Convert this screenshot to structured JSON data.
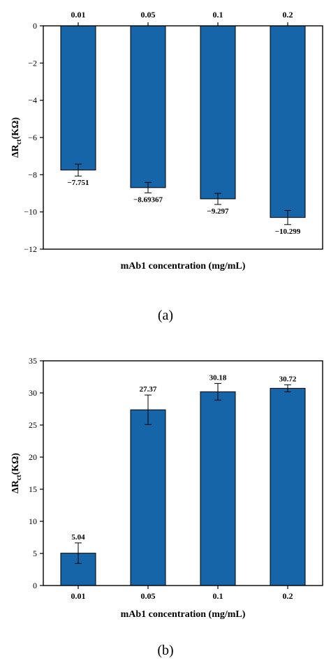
{
  "chart_data": [
    {
      "panel": "(a)",
      "type": "bar",
      "categories": [
        "0.01",
        "0.05",
        "0.1",
        "0.2"
      ],
      "values": [
        -7.751,
        -8.69367,
        -9.297,
        -10.299
      ],
      "value_labels": [
        "−7.751",
        "−8.69367",
        "−9.297",
        "−10.299"
      ],
      "errors": [
        0.32,
        0.28,
        0.3,
        0.38
      ],
      "xlabel": "mAb1 concentration (mg/mL)",
      "ylabel_main": "ΔR",
      "ylabel_sub": "ct",
      "ylabel_unit": "(KΩ)",
      "ylim": [
        -12,
        0
      ],
      "yticks": [
        0,
        -2,
        -4,
        -6,
        -8,
        -10,
        -12
      ],
      "ytick_labels": [
        "0",
        "−2",
        "−4",
        "−6",
        "−8",
        "−10",
        "−12"
      ],
      "category_axis": "top",
      "bar_color": "#1565a8",
      "grid": false
    },
    {
      "panel": "(b)",
      "type": "bar",
      "categories": [
        "0.01",
        "0.05",
        "0.1",
        "0.2"
      ],
      "values": [
        5.04,
        27.37,
        30.18,
        30.72
      ],
      "value_labels": [
        "5.04",
        "27.37",
        "30.18",
        "30.72"
      ],
      "errors": [
        1.6,
        2.3,
        1.3,
        0.55
      ],
      "xlabel": "mAb1 concentration (mg/mL)",
      "ylabel_main": "ΔR",
      "ylabel_sub": "ct",
      "ylabel_unit": "(KΩ)",
      "ylim": [
        0,
        35
      ],
      "yticks": [
        0,
        5,
        10,
        15,
        20,
        25,
        30,
        35
      ],
      "ytick_labels": [
        "0",
        "5",
        "10",
        "15",
        "20",
        "25",
        "30",
        "35"
      ],
      "category_axis": "bottom",
      "bar_color": "#1565a8",
      "grid": false
    }
  ]
}
